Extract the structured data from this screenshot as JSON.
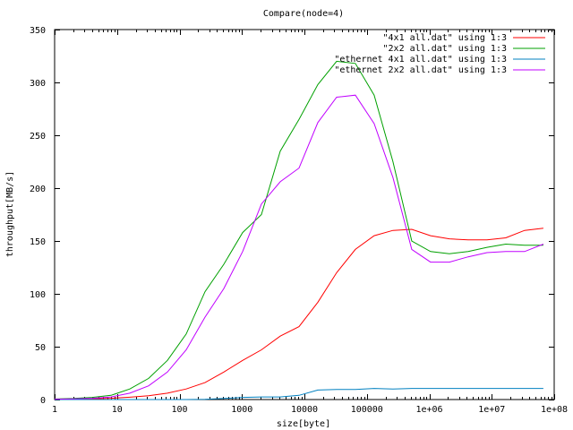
{
  "chart_data": {
    "type": "line",
    "title": "Compare(node=4)",
    "xlabel": "size[byte]",
    "ylabel": "throughput[MB/s]",
    "xscale": "log",
    "xlim": [
      1,
      100000000
    ],
    "ylim": [
      0,
      350
    ],
    "grid": false,
    "legend_position": "top-right",
    "xticks": [
      1,
      10,
      100,
      1000,
      10000,
      100000,
      1000000,
      10000000,
      100000000
    ],
    "xtick_labels": [
      "1",
      "10",
      "100",
      "1000",
      "10000",
      "100000",
      "1e+06",
      "1e+07",
      "1e+08"
    ],
    "yticks": [
      0,
      50,
      100,
      150,
      200,
      250,
      300,
      350
    ],
    "ytick_labels": [
      "0",
      "50",
      "100",
      "150",
      "200",
      "250",
      "300",
      "350"
    ],
    "series": [
      {
        "name": "\"4x1 all.dat\" using 1:3",
        "color": "#ff0000",
        "x": [
          1,
          2,
          4,
          8,
          16,
          32,
          64,
          128,
          256,
          512,
          1024,
          2048,
          4096,
          8192,
          16384,
          32768,
          65536,
          131072,
          262144,
          524288,
          1048576,
          2097152,
          4194304,
          8388608,
          16777216,
          33554432,
          67108864
        ],
        "y": [
          0.1,
          0.3,
          0.6,
          1.2,
          2.2,
          3.6,
          6,
          10,
          16,
          26,
          37,
          47,
          60,
          69,
          92,
          120,
          142,
          155,
          160,
          161,
          155,
          152,
          151,
          151,
          153,
          160,
          162
        ]
      },
      {
        "name": "\"2x2 all.dat\" using 1:3",
        "color": "#00a000",
        "x": [
          1,
          2,
          4,
          8,
          16,
          32,
          64,
          128,
          256,
          512,
          1024,
          2048,
          4096,
          8192,
          16384,
          32768,
          65536,
          131072,
          262144,
          524288,
          1048576,
          2097152,
          4194304,
          8388608,
          16777216,
          33554432,
          67108864
        ],
        "y": [
          0.5,
          1,
          2,
          4,
          10,
          20,
          37,
          62,
          102,
          128,
          158,
          175,
          235,
          265,
          298,
          320,
          318,
          288,
          225,
          150,
          140,
          138,
          140,
          144,
          147,
          146,
          146
        ]
      },
      {
        "name": "\"ethernet 4x1 all.dat\" using 1:3",
        "color": "#0080c0",
        "x": [
          1,
          2,
          4,
          8,
          16,
          32,
          64,
          128,
          256,
          512,
          1024,
          2048,
          4096,
          8192,
          16384,
          32768,
          65536,
          131072,
          262144,
          524288,
          1048576,
          2097152,
          4194304,
          8388608,
          16777216,
          33554432,
          67108864
        ],
        "y": [
          0,
          0,
          0,
          0,
          0,
          0,
          0,
          0,
          0.2,
          1,
          2,
          2.5,
          2.5,
          4,
          9,
          9.5,
          9.5,
          10.5,
          10,
          10.5,
          10.5,
          10.5,
          10.5,
          10.5,
          10.5,
          10.5,
          10.5
        ]
      },
      {
        "name": "\"ethernet 2x2 all.dat\" using 1:3",
        "color": "#c000ff",
        "x": [
          1,
          2,
          4,
          8,
          16,
          32,
          64,
          128,
          256,
          512,
          1024,
          2048,
          4096,
          8192,
          16384,
          32768,
          65536,
          131072,
          262144,
          524288,
          1048576,
          2097152,
          4194304,
          8388608,
          16777216,
          33554432,
          67108864
        ],
        "y": [
          0.3,
          0.6,
          1.2,
          2.5,
          6,
          13,
          26,
          47,
          78,
          105,
          140,
          185,
          206,
          219,
          262,
          286,
          288,
          261,
          210,
          142,
          130,
          130,
          135,
          139,
          140,
          140,
          147
        ]
      }
    ]
  }
}
